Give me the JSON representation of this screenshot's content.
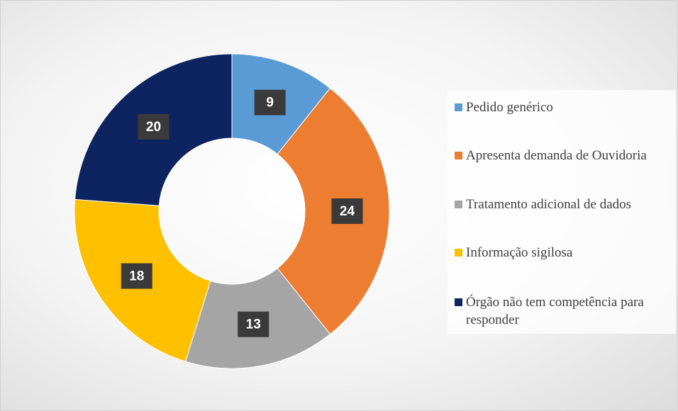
{
  "chart_data": {
    "type": "donut",
    "categories": [
      "Pedido genérico",
      "Apresenta demanda de Ouvidoria",
      "Tratamento adicional de dados",
      "Informação sigilosa",
      "Órgão não tem competência para responder"
    ],
    "values": [
      9,
      24,
      13,
      18,
      20
    ],
    "colors": [
      "#5b9bd5",
      "#ed7d31",
      "#a5a5a5",
      "#ffc000",
      "#0e2461"
    ],
    "legend": "right"
  }
}
